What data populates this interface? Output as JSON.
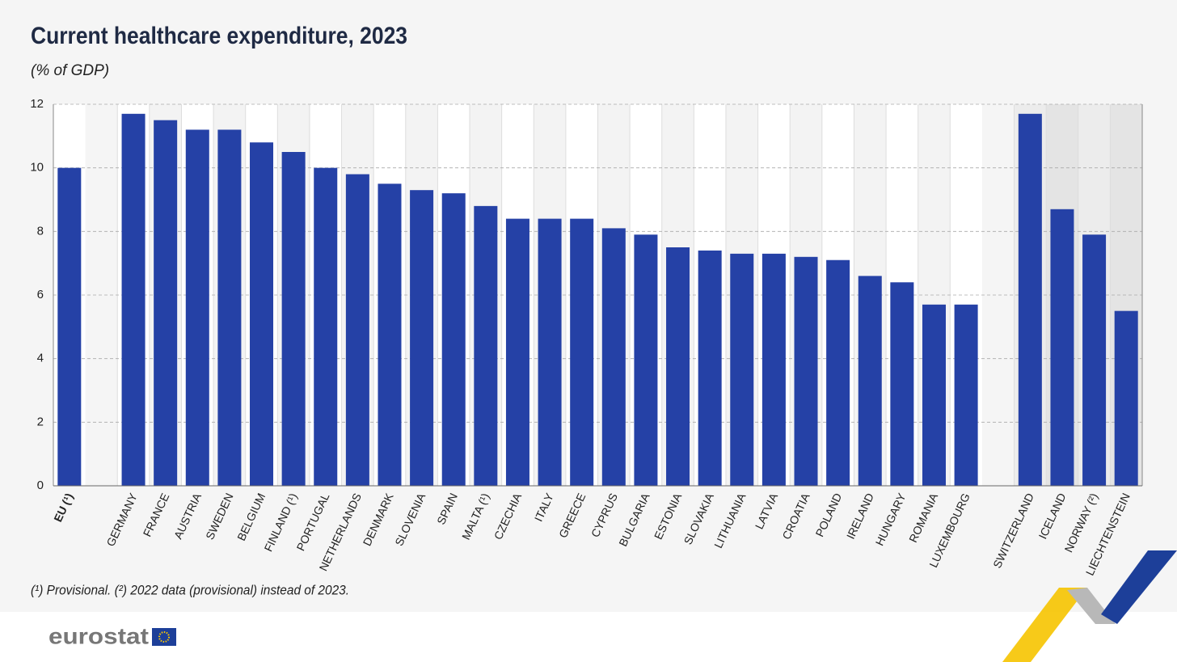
{
  "chart_data": {
    "type": "bar",
    "title": "Current healthcare expenditure, 2023",
    "subtitle": "(% of GDP)",
    "footnote": "(¹) Provisional. (²) 2022 data (provisional) instead of 2023.",
    "source": "eurostat",
    "categories": [
      "EU (¹)",
      null,
      "GERMANY",
      "FRANCE",
      "AUSTRIA",
      "SWEDEN",
      "BELGIUM",
      "FINLAND (¹)",
      "PORTUGAL",
      "NETHERLANDS",
      "DENMARK",
      "SLOVENIA",
      "SPAIN",
      "MALTA (¹)",
      "CZECHIA",
      "ITALY",
      "GREECE",
      "CYPRUS",
      "BULGARIA",
      "ESTONIA",
      "SLOVAKIA",
      "LITHUANIA",
      "LATVIA",
      "CROATIA",
      "POLAND",
      "IRELAND",
      "HUNGARY",
      "ROMANIA",
      "LUXEMBOURG",
      null,
      "SWITZERLAND",
      "ICELAND",
      "NORWAY (²)",
      "LIECHTENSTEIN"
    ],
    "values": [
      10.0,
      null,
      11.7,
      11.5,
      11.2,
      11.2,
      10.8,
      10.5,
      10.0,
      9.8,
      9.5,
      9.3,
      9.2,
      8.8,
      8.4,
      8.4,
      8.4,
      8.1,
      7.9,
      7.5,
      7.4,
      7.3,
      7.3,
      7.2,
      7.1,
      6.6,
      6.4,
      5.7,
      5.7,
      null,
      11.7,
      8.7,
      7.9,
      5.5
    ],
    "color": "#2541a6",
    "ylim": [
      0,
      12
    ],
    "yticks": [
      0,
      2,
      4,
      6,
      8,
      10,
      12
    ],
    "grid": true
  }
}
